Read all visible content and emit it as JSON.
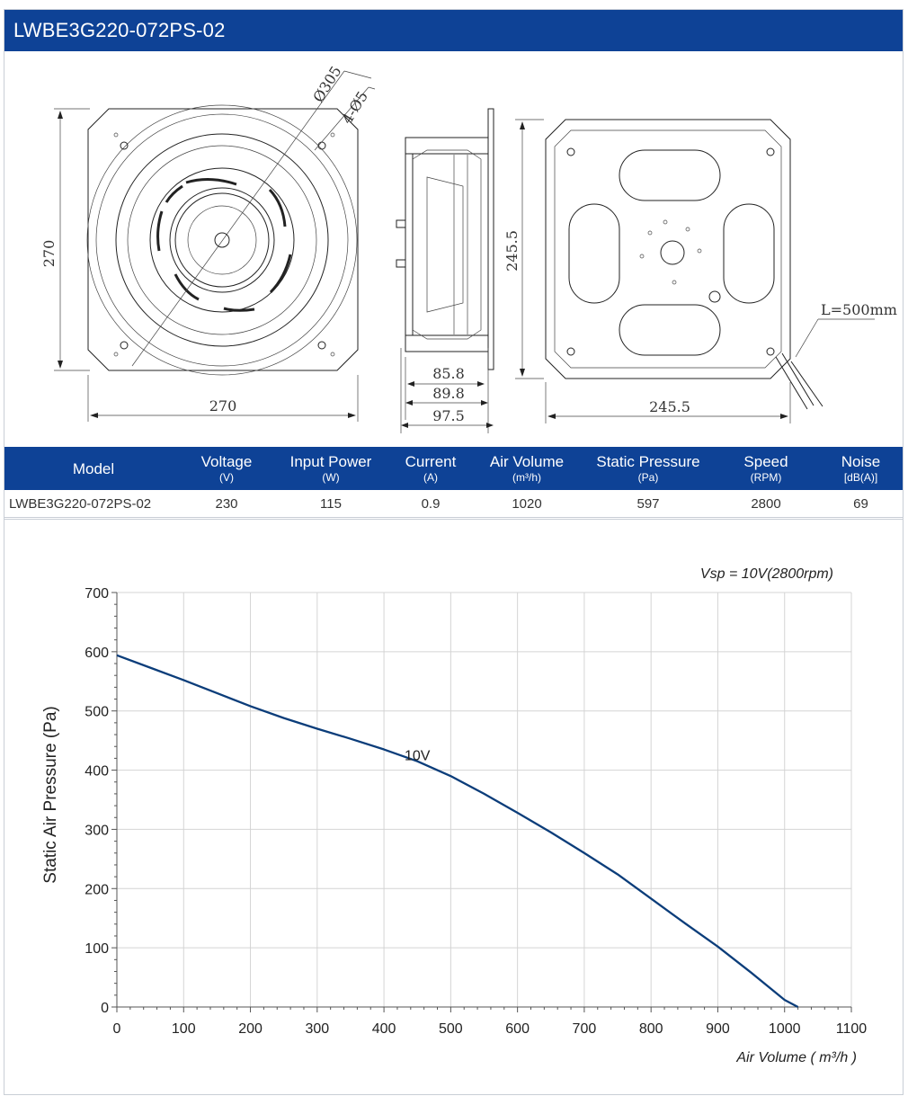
{
  "header": {
    "title": "LWBE3G220-072PS-02"
  },
  "drawing": {
    "front": {
      "diameter_label": "Ø305",
      "holes_label": "4-Ø5",
      "height_label": "270",
      "width_label": "270"
    },
    "side": {
      "dim1": "85.8",
      "dim2": "89.8",
      "dim3": "97.5"
    },
    "back": {
      "height_label": "245.5",
      "width_label": "245.5",
      "cable_label": "L=500mm"
    }
  },
  "table": {
    "headers": [
      {
        "label": "Model",
        "unit": ""
      },
      {
        "label": "Voltage",
        "unit": "(V)"
      },
      {
        "label": "Input Power",
        "unit": "(W)"
      },
      {
        "label": "Current",
        "unit": "(A)"
      },
      {
        "label": "Air Volume",
        "unit": "(m³/h)"
      },
      {
        "label": "Static Pressure",
        "unit": "(Pa)"
      },
      {
        "label": "Speed",
        "unit": "(RPM)"
      },
      {
        "label": "Noise",
        "unit": "[dB(A)]"
      }
    ],
    "row": [
      "LWBE3G220-072PS-02",
      "230",
      "115",
      "0.9",
      "1020",
      "597",
      "2800",
      "69"
    ]
  },
  "chart_data": {
    "type": "line",
    "annotation": "Vsp = 10V(2800rpm)",
    "xlabel": "Air Volume ( m³/h )",
    "ylabel": "Static Air Pressure  (Pa)",
    "xlim": [
      0,
      1100
    ],
    "ylim": [
      0,
      700
    ],
    "xticks": [
      0,
      100,
      200,
      300,
      400,
      500,
      600,
      700,
      800,
      900,
      1000,
      1100
    ],
    "yticks": [
      0,
      100,
      200,
      300,
      400,
      500,
      600,
      700
    ],
    "grid": true,
    "line_color": "#0b3d7a",
    "series": [
      {
        "name": "10V",
        "x": [
          0,
          50,
          100,
          150,
          200,
          250,
          300,
          350,
          400,
          450,
          500,
          550,
          600,
          650,
          700,
          750,
          800,
          850,
          900,
          950,
          1000,
          1020
        ],
        "y": [
          594,
          573,
          552,
          530,
          508,
          488,
          470,
          453,
          435,
          415,
          390,
          360,
          328,
          295,
          260,
          224,
          183,
          142,
          102,
          58,
          12,
          0
        ]
      }
    ]
  }
}
